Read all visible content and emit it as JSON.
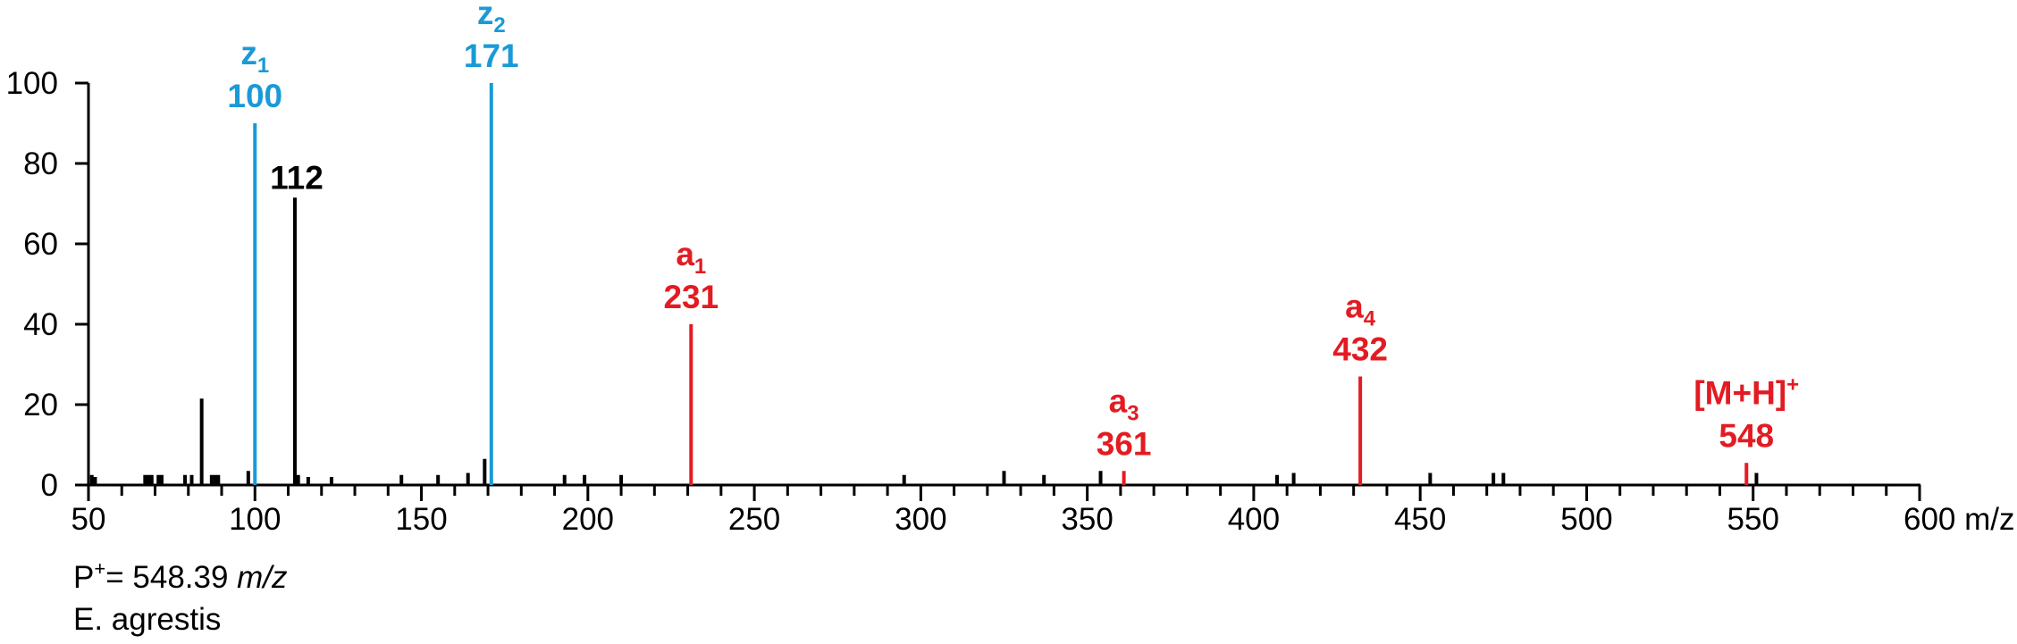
{
  "colors": {
    "black": "#000000",
    "blue": "#1a9ad6",
    "red": "#e31b23"
  },
  "chart_data": {
    "type": "bar",
    "xlabel": "m/z",
    "ylabel": "",
    "xlim": [
      50,
      600
    ],
    "ylim": [
      0,
      100
    ],
    "x_ticks": [
      50,
      100,
      150,
      200,
      250,
      300,
      350,
      400,
      450,
      500,
      550,
      600
    ],
    "y_ticks": [
      0,
      20,
      40,
      60,
      80,
      100
    ],
    "x_tick_labels": [
      "50",
      "100",
      "150",
      "200",
      "250",
      "300",
      "350",
      "400",
      "450",
      "500",
      "550",
      "600 m/z"
    ],
    "y_tick_labels": [
      "0",
      "20",
      "40",
      "60",
      "80",
      "100"
    ],
    "series": [
      {
        "color": "black",
        "points": [
          [
            51,
            2.5
          ],
          [
            52,
            2
          ],
          [
            67,
            2.5
          ],
          [
            68,
            2.5
          ],
          [
            69,
            2.5
          ],
          [
            71,
            2.5
          ],
          [
            72,
            2.5
          ],
          [
            79,
            2.5
          ],
          [
            81,
            2.5
          ],
          [
            84,
            21.5
          ],
          [
            87,
            2.5
          ],
          [
            88,
            2.5
          ],
          [
            89,
            2.5
          ],
          [
            98,
            3.5
          ],
          [
            112,
            71.5
          ],
          [
            113,
            2.5
          ],
          [
            116,
            2
          ],
          [
            123,
            2
          ],
          [
            144,
            2.5
          ],
          [
            155,
            2.5
          ],
          [
            164,
            3
          ],
          [
            169,
            6.5
          ],
          [
            193,
            2.5
          ],
          [
            199,
            2.5
          ],
          [
            210,
            2.5
          ],
          [
            295,
            2.5
          ],
          [
            325,
            3.5
          ],
          [
            337,
            2.5
          ],
          [
            354,
            3.5
          ],
          [
            407,
            2.5
          ],
          [
            412,
            3
          ],
          [
            453,
            3
          ],
          [
            472,
            3
          ],
          [
            475,
            3
          ],
          [
            551,
            3
          ]
        ]
      },
      {
        "color": "blue",
        "points": [
          [
            100,
            90
          ],
          [
            171,
            100
          ]
        ]
      },
      {
        "color": "red",
        "points": [
          [
            231,
            40
          ],
          [
            361,
            3.5
          ],
          [
            432,
            27
          ],
          [
            548,
            5.5
          ]
        ]
      }
    ],
    "peak_labels": [
      {
        "text": "112",
        "x": 112,
        "y": 71.5,
        "color": "black"
      }
    ],
    "ion_labels": [
      {
        "ion": "z",
        "sub": "1",
        "mz": "100",
        "x": 100,
        "color": "blue",
        "top_value": 90
      },
      {
        "ion": "z",
        "sub": "2",
        "mz": "171",
        "x": 171,
        "color": "blue",
        "top_value": 100
      },
      {
        "ion": "a",
        "sub": "1",
        "mz": "231",
        "x": 231,
        "color": "red",
        "top_value": 40
      },
      {
        "ion": "a",
        "sub": "3",
        "mz": "361",
        "x": 361,
        "color": "red",
        "top_value": 3.5
      },
      {
        "ion": "a",
        "sub": "4",
        "mz": "432",
        "x": 432,
        "color": "red",
        "top_value": 27
      },
      {
        "ion": "[M+H]",
        "sup": "+",
        "mz": "548",
        "x": 548,
        "color": "red",
        "top_value": 5.5
      }
    ]
  },
  "caption": {
    "precursor_prefix": "P",
    "precursor_sup": "+",
    "precursor_value": "= 548.39 ",
    "precursor_unit": "m/z",
    "species": "E. agrestis"
  }
}
